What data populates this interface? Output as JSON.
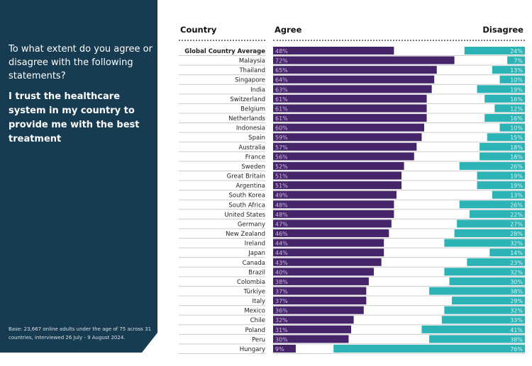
{
  "panel": {
    "question": "To what extent do you agree or disagree with the following statements?",
    "statement": "I trust the healthcare system in my country to provide me with the best treatment",
    "base": "Base: 23,667 online adults under the age of 75 across 31 countries, interviewed 26 July - 9 August 2024."
  },
  "chart_data": {
    "type": "bar",
    "headers": {
      "category": "Country",
      "left": "Agree",
      "right": "Disagree"
    },
    "colors": {
      "agree": "#452469",
      "disagree": "#2bb3b5"
    },
    "xlim": [
      0,
      100
    ],
    "categories": [
      "Global Country Average",
      "Malaysia",
      "Thailand",
      "Singapore",
      "India",
      "Switzerland",
      "Belgium",
      "Netherlands",
      "Indonesia",
      "Spain",
      "Australia",
      "France",
      "Sweden",
      "Great Britain",
      "Argentina",
      "South Korea",
      "South Africa",
      "United States",
      "Germany",
      "New Zealand",
      "Ireland",
      "Japan",
      "Canada",
      "Brazil",
      "Colombia",
      "Türkiye",
      "Italy",
      "Mexico",
      "Chile",
      "Poland",
      "Peru",
      "Hungary"
    ],
    "series": [
      {
        "name": "Agree",
        "values": [
          48,
          72,
          65,
          64,
          63,
          61,
          61,
          61,
          60,
          59,
          57,
          56,
          52,
          51,
          51,
          49,
          48,
          48,
          47,
          46,
          44,
          44,
          43,
          40,
          38,
          37,
          37,
          36,
          32,
          31,
          30,
          9
        ]
      },
      {
        "name": "Disagree",
        "values": [
          24,
          7,
          13,
          10,
          19,
          16,
          12,
          16,
          10,
          15,
          18,
          18,
          26,
          19,
          19,
          13,
          26,
          22,
          27,
          28,
          32,
          14,
          23,
          32,
          30,
          38,
          29,
          32,
          33,
          41,
          38,
          76
        ]
      }
    ]
  }
}
